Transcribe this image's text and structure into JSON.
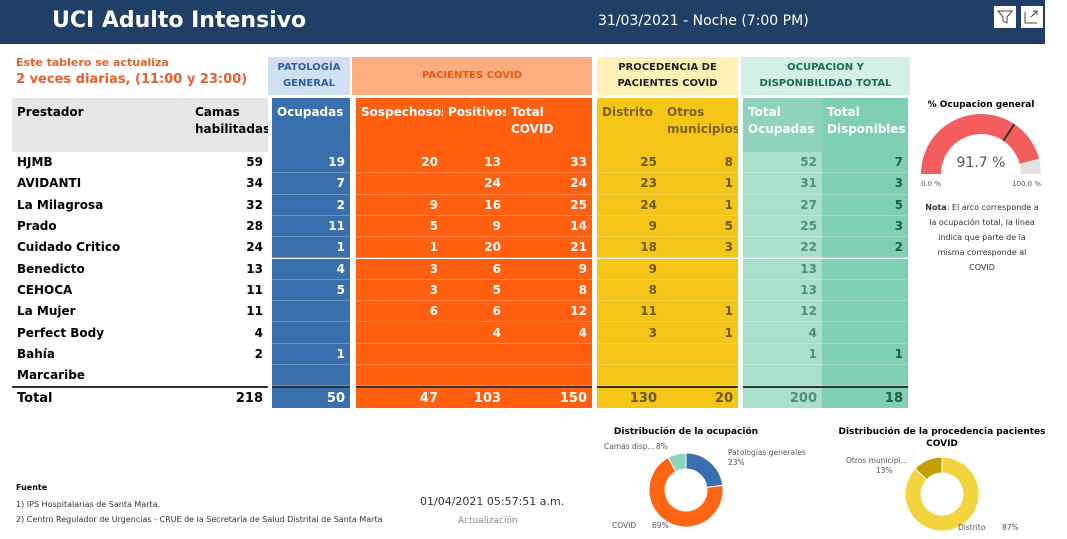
{
  "header": {
    "title": "UCI Adulto Intensivo",
    "date": "31/03/2021 - Noche (7:00 PM)"
  },
  "notice": {
    "line1": "Este tablero se actualiza",
    "line2": "2 veces diarias, (11:00 y 23:00)"
  },
  "table": {
    "groups": [
      "PATOLOGÍA GENERAL",
      "PACIENTES COVID",
      "PROCEDENCIA DE PACIENTES COVID",
      "OCUPACION Y DISPONIBILIDAD TOTAL"
    ],
    "columns": [
      "Prestador",
      "Camas habilitadas",
      "Ocupadas",
      "Sospechosos",
      "Positivos",
      "Total COVID",
      "Distrito",
      "Otros municipios",
      "Total Ocupadas",
      "Total Disponibles"
    ],
    "rows": [
      [
        "HJMB",
        59,
        19,
        20,
        13,
        33,
        25,
        8,
        52,
        7
      ],
      [
        "AVIDANTI",
        34,
        7,
        null,
        24,
        24,
        23,
        1,
        31,
        3
      ],
      [
        "La Milagrosa",
        32,
        2,
        9,
        16,
        25,
        24,
        1,
        27,
        5
      ],
      [
        "Prado",
        28,
        11,
        5,
        9,
        14,
        9,
        5,
        25,
        3
      ],
      [
        "Cuidado Critico",
        24,
        1,
        1,
        20,
        21,
        18,
        3,
        22,
        2
      ],
      [
        "Benedicto",
        13,
        4,
        3,
        6,
        9,
        9,
        null,
        13,
        null
      ],
      [
        "CEHOCA",
        11,
        5,
        3,
        5,
        8,
        8,
        null,
        13,
        null
      ],
      [
        "La Mujer",
        11,
        null,
        6,
        6,
        12,
        11,
        1,
        12,
        null
      ],
      [
        "Perfect Body",
        4,
        null,
        null,
        4,
        4,
        3,
        1,
        4,
        null
      ],
      [
        "Bahía",
        2,
        1,
        null,
        null,
        null,
        null,
        null,
        1,
        1
      ],
      [
        "Marcaribe",
        null,
        null,
        null,
        null,
        null,
        null,
        null,
        null,
        null
      ]
    ],
    "total": [
      "Total",
      218,
      50,
      47,
      103,
      150,
      130,
      20,
      200,
      18
    ]
  },
  "gauge": {
    "title": "% Ocupacion general",
    "value": 91.7,
    "value_label": "91.7 %",
    "covid_line": 68.8,
    "min": {
      "value": 0,
      "label": "0.0 %"
    },
    "max": {
      "value": 100,
      "label": "100.0 %"
    },
    "color": "#f35d5d",
    "note_bold": "Nota",
    "note": ": El arco corresponde a la ocupación total, la línea indica que parte de la misma corresponde al COVID"
  },
  "chart_data": [
    {
      "type": "donut",
      "title": "Distribución de la ocupación",
      "categories": [
        "Patologias generales",
        "COVID",
        "Camas disp..."
      ],
      "values": [
        23,
        69,
        8
      ],
      "value_labels": [
        "23%",
        "69%",
        "8%"
      ],
      "colors": [
        "#3a6fae",
        "#ff6412",
        "#8fd3bd"
      ]
    },
    {
      "type": "donut",
      "title": "Distribución de la procedencia pacientes COVID",
      "categories": [
        "Distrito",
        "Otros municipi..."
      ],
      "values": [
        87,
        13
      ],
      "value_labels": [
        "87%",
        "13%"
      ],
      "colors": [
        "#f2d43c",
        "#c49f00"
      ]
    }
  ],
  "footer": {
    "source_title": "Fuente",
    "sources": [
      "1) IPS Hospitalarias de Santa Marta.",
      "2) Centro Regulador de Urgencias - CRUE de la Secretaría de Salud Distrital de Santa Marta"
    ],
    "updated": "01/04/2021 05:57:51 a.m.",
    "updated_label": "Actualización"
  }
}
